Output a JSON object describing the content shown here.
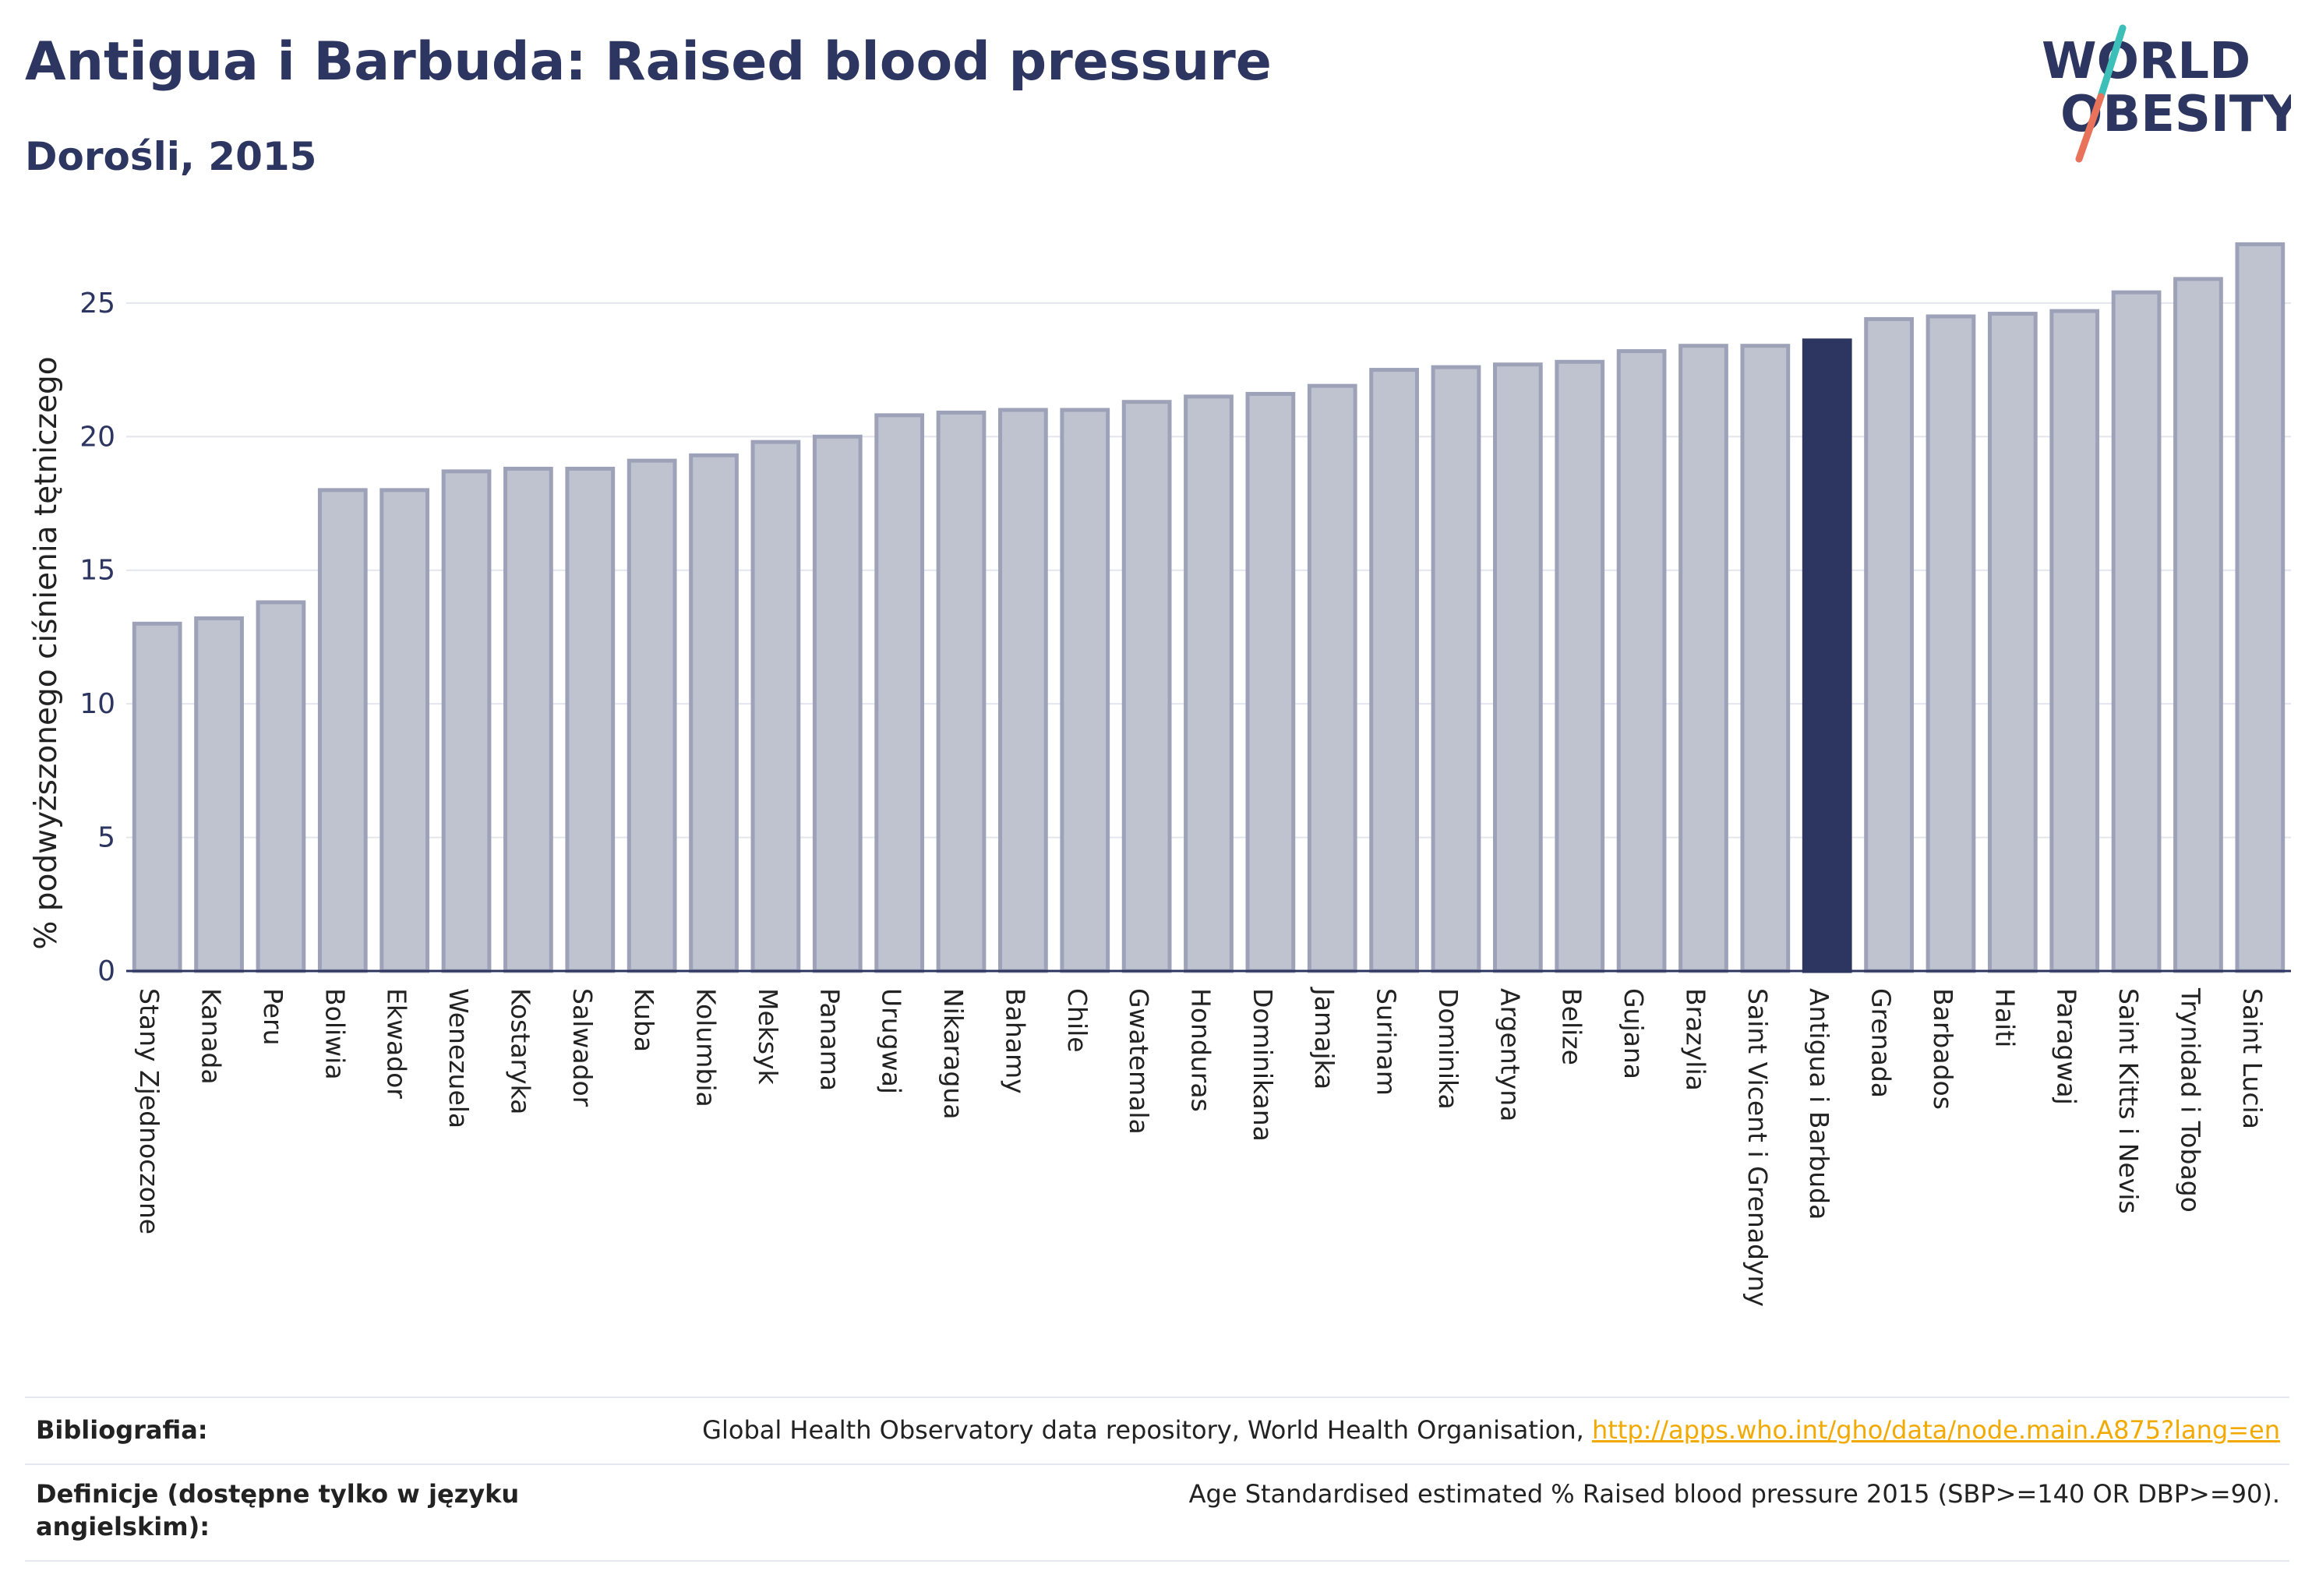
{
  "header": {
    "title": "Antigua i Barbuda: Raised blood pressure",
    "subtitle": "Dorośli, 2015"
  },
  "logo": {
    "line1": "WORLD",
    "line2": "OBESITY",
    "colors": {
      "text": "#2d3561",
      "slash_teal": "#3bbfb8",
      "slash_coral": "#e8735a"
    }
  },
  "chart_data": {
    "type": "bar",
    "title": "Antigua i Barbuda: Raised blood pressure",
    "subtitle": "Dorośli, 2015",
    "ylabel": "% podwyższonego ciśnienia tętniczego",
    "xlabel": "",
    "ylim": [
      0,
      27.3
    ],
    "yticks": [
      0,
      5,
      10,
      15,
      20,
      25
    ],
    "grid": true,
    "highlight": "Antigua i Barbuda",
    "colors": {
      "bar": "#bfc2cf",
      "bar_border": "#9da2b8",
      "highlight": "#2d3561"
    },
    "categories": [
      "Stany Zjednoczone",
      "Kanada",
      "Peru",
      "Boliwia",
      "Ekwador",
      "Wenezuela",
      "Kostaryka",
      "Salwador",
      "Kuba",
      "Kolumbia",
      "Meksyk",
      "Panama",
      "Urugwaj",
      "Nikaragua",
      "Bahamy",
      "Chile",
      "Gwatemala",
      "Honduras",
      "Dominikana",
      "Jamajka",
      "Surinam",
      "Dominika",
      "Argentyna",
      "Belize",
      "Gujana",
      "Brazylia",
      "Saint Vicent i Grenadyny",
      "Antigua i Barbuda",
      "Grenada",
      "Barbados",
      "Haiti",
      "Paragwaj",
      "Saint Kitts i Nevis",
      "Trynidad i Tobago",
      "Saint Lucia"
    ],
    "values": [
      13.0,
      13.2,
      13.8,
      18.0,
      18.0,
      18.7,
      18.8,
      18.8,
      19.1,
      19.3,
      19.8,
      20.0,
      20.8,
      20.9,
      21.0,
      21.0,
      21.3,
      21.5,
      21.6,
      21.9,
      22.5,
      22.6,
      22.7,
      22.8,
      23.2,
      23.4,
      23.4,
      23.6,
      24.4,
      24.5,
      24.6,
      24.7,
      25.4,
      25.9,
      27.2
    ]
  },
  "footer": {
    "bibliography_label": "Bibliografia:",
    "bibliography_text": "Global Health Observatory data repository, World Health Organisation, ",
    "bibliography_link": "http://apps.who.int/gho/data/node.main.A875?lang=en",
    "definitions_label": "Definicje (dostępne tylko w języku angielskim):",
    "definitions_text": "Age Standardised estimated % Raised blood pressure 2015 (SBP>=140 OR DBP>=90)."
  }
}
